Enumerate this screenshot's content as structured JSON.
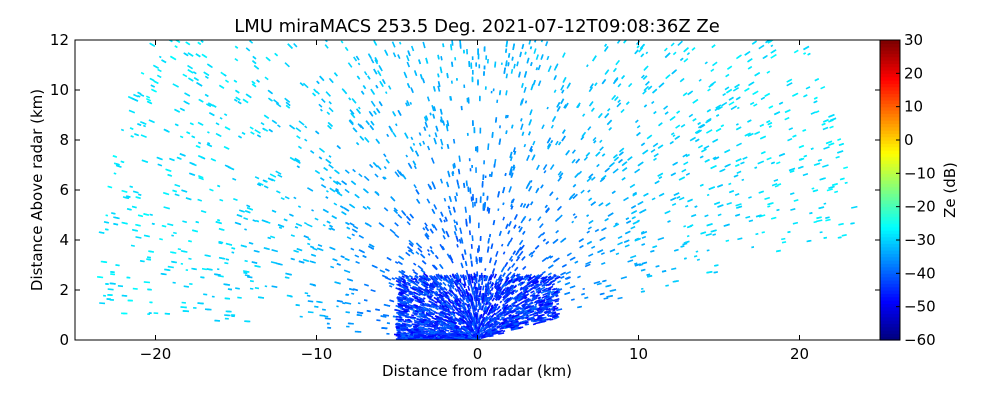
{
  "chart_data": {
    "type": "heatmap",
    "title": "LMU miraMACS 253.5 Deg. 2021-07-12T09:08:36Z  Ze",
    "xlabel": "Distance from radar (km)",
    "ylabel": "Distance Above radar  (km)",
    "xlim": [
      -25,
      25
    ],
    "ylim": [
      0,
      12
    ],
    "xticks": [
      -20,
      -10,
      0,
      10,
      20
    ],
    "yticks": [
      0,
      2,
      4,
      6,
      8,
      10,
      12
    ],
    "grid": false,
    "colorbar": {
      "label": "Ze (dB)",
      "range": [
        -60,
        30
      ],
      "ticks": [
        -60,
        -50,
        -40,
        -30,
        -20,
        -10,
        0,
        10,
        20,
        30
      ],
      "colormap": "jet"
    },
    "scan": {
      "type": "RHI",
      "azimuth_deg": 253.5,
      "max_range_km": 24,
      "min_elevation_left_deg": 2.5,
      "min_elevation_right_deg": 10,
      "max_height_km": 12
    },
    "reflectivity_profile": [
      {
        "range_km": 0,
        "ze_db": -42
      },
      {
        "range_km": 2,
        "ze_db": -41
      },
      {
        "range_km": 4,
        "ze_db": -40
      },
      {
        "range_km": 6,
        "ze_db": -38
      },
      {
        "range_km": 9,
        "ze_db": -34
      },
      {
        "range_km": 13,
        "ze_db": -31
      },
      {
        "range_km": 18,
        "ze_db": -29
      },
      {
        "range_km": 24,
        "ze_db": -28
      }
    ],
    "near_surface_core": {
      "x_km": [
        -5,
        5
      ],
      "height_km": [
        0,
        2.6
      ],
      "ze_db": -44
    }
  }
}
